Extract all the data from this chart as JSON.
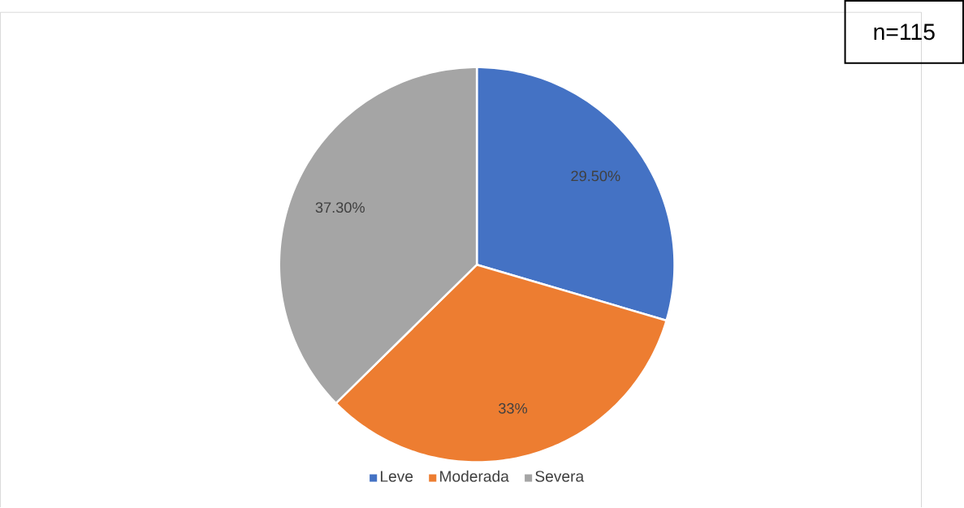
{
  "chart_data": {
    "type": "pie",
    "categories": [
      "Leve",
      "Moderada",
      "Severa"
    ],
    "values": [
      29.5,
      33,
      37.3
    ],
    "colors": [
      "#4472c4",
      "#ed7d31",
      "#a5a5a5"
    ],
    "value_labels": [
      "29.50%",
      "33%",
      "37.30%"
    ],
    "legend": "bottom",
    "annotations": [
      "n=115"
    ]
  }
}
